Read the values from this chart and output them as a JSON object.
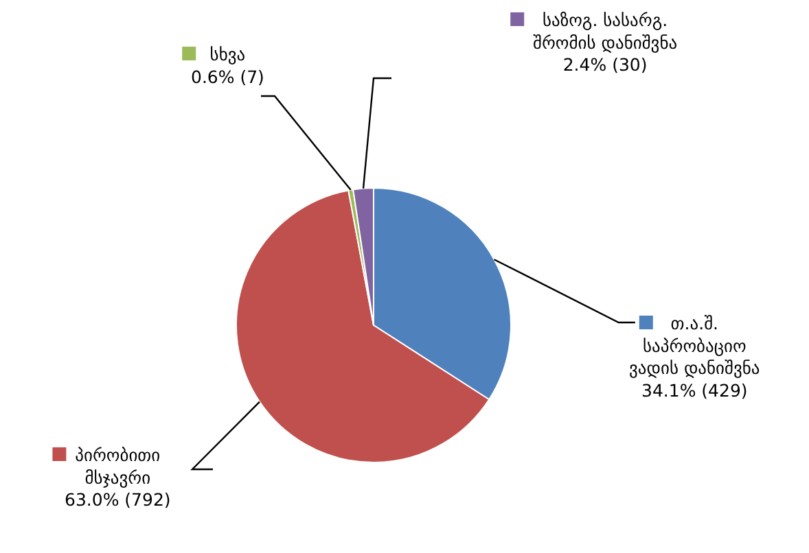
{
  "chart_data": {
    "type": "pie",
    "categories": [
      "თ.ა.შ. საპრობაციო ვადის დანიშვნა",
      "პირობითი მსჯავრი",
      "სხვა",
      "საზოგ. სასარგ. შრომის დანიშვნა"
    ],
    "values": [
      429,
      792,
      7,
      30
    ],
    "value_labels": [
      "34.1% (429)",
      "63.0% (792)",
      "0.6% (7)",
      "2.4% (30)"
    ],
    "colors": [
      "#4f81bd",
      "#c0504d",
      "#9bbb59",
      "#8064a2"
    ],
    "legend": "right"
  }
}
